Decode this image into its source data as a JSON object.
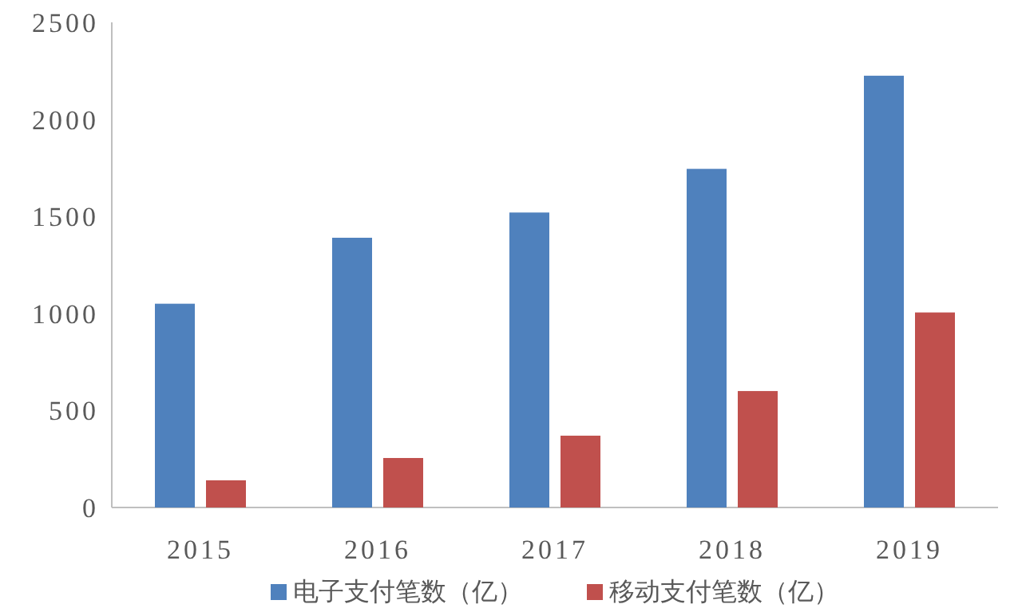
{
  "chart_data": {
    "type": "bar",
    "categories": [
      "2015",
      "2016",
      "2017",
      "2018",
      "2019"
    ],
    "series": [
      {
        "name": "电子支付笔数（亿）",
        "color": "#4f81bd",
        "values": [
          1050,
          1390,
          1520,
          1745,
          2225
        ]
      },
      {
        "name": "移动支付笔数（亿）",
        "color": "#c0504d",
        "values": [
          140,
          255,
          370,
          600,
          1005
        ]
      }
    ],
    "ylim": [
      0,
      2500
    ],
    "yticks": [
      0,
      500,
      1000,
      1500,
      2000,
      2500
    ],
    "grid": false,
    "legend": "bottom"
  }
}
